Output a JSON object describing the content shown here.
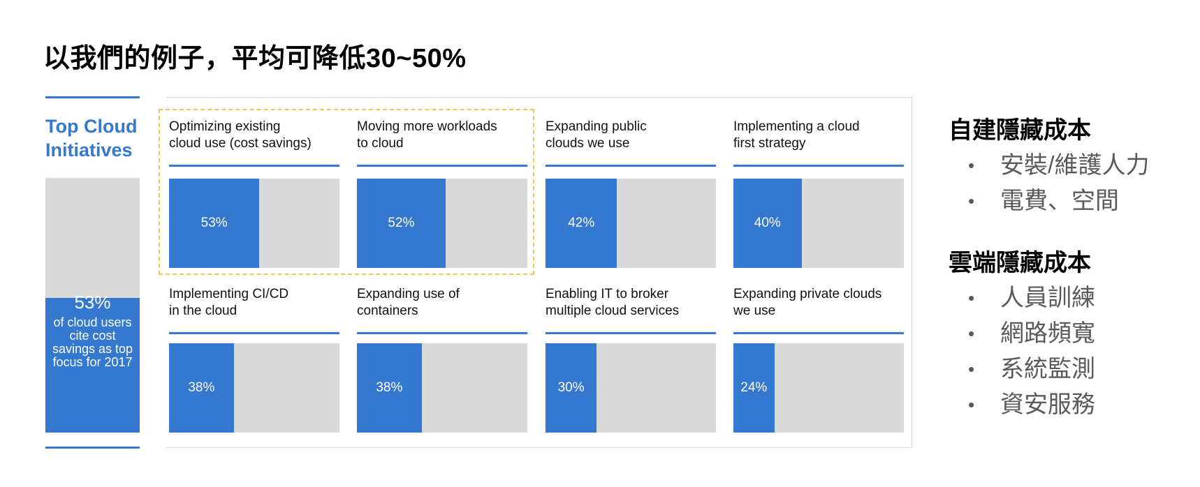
{
  "title": "以我們的例子，平均可降低30~50%",
  "summary": {
    "heading": "Top Cloud Initiatives",
    "value": 53,
    "value_label": "53%",
    "caption": "of cloud users cite cost savings as top focus for 2017"
  },
  "chart_data": {
    "type": "bar",
    "categories": [
      "Optimizing existing cloud use (cost savings)",
      "Moving more workloads to cloud",
      "Expanding public clouds we use",
      "Implementing a cloud first strategy",
      "Implementing CI/CD in the cloud",
      "Expanding use of containers",
      "Enabling IT to broker multiple cloud services",
      "Expanding private clouds we use"
    ],
    "display_labels": [
      "Optimizing existing\ncloud use (cost savings)",
      "Moving more workloads\nto cloud",
      "Expanding public\nclouds we use",
      "Implementing a cloud\nfirst strategy",
      "Implementing CI/CD\nin the cloud",
      "Expanding use of\ncontainers",
      "Enabling IT to broker\nmultiple cloud services",
      "Expanding private clouds\nwe use"
    ],
    "values": [
      53,
      52,
      42,
      40,
      38,
      38,
      30,
      24
    ],
    "value_labels": [
      "53%",
      "52%",
      "42%",
      "40%",
      "38%",
      "38%",
      "30%",
      "24%"
    ],
    "ylim": [
      0,
      100
    ],
    "highlighted": [
      0,
      1
    ]
  },
  "notes": {
    "groups": [
      {
        "heading": "自建隱藏成本",
        "items": [
          "安裝/維護人力",
          "電費、空間"
        ]
      },
      {
        "heading": "雲端隱藏成本",
        "items": [
          "人員訓練",
          "網路頻寬",
          "系統監測",
          "資安服務"
        ]
      }
    ],
    "bullet": "•"
  },
  "colors": {
    "accent": "#3478cf",
    "track": "#d9d9d9",
    "highlight": "#f3c553"
  }
}
